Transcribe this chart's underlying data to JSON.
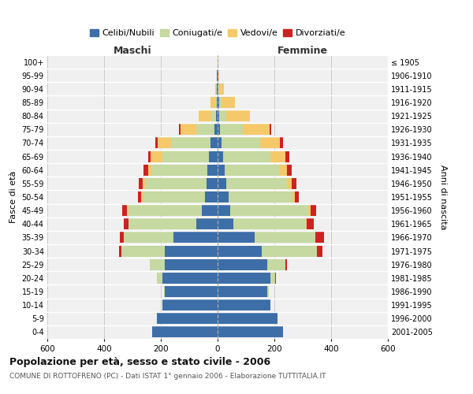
{
  "age_groups": [
    "0-4",
    "5-9",
    "10-14",
    "15-19",
    "20-24",
    "25-29",
    "30-34",
    "35-39",
    "40-44",
    "45-49",
    "50-54",
    "55-59",
    "60-64",
    "65-69",
    "70-74",
    "75-79",
    "80-84",
    "85-89",
    "90-94",
    "95-99",
    "100+"
  ],
  "birth_years": [
    "2001-2005",
    "1996-2000",
    "1991-1995",
    "1986-1990",
    "1981-1985",
    "1976-1980",
    "1971-1975",
    "1966-1970",
    "1961-1965",
    "1956-1960",
    "1951-1955",
    "1946-1950",
    "1941-1945",
    "1936-1940",
    "1931-1935",
    "1926-1930",
    "1921-1925",
    "1916-1920",
    "1911-1915",
    "1906-1910",
    "≤ 1905"
  ],
  "colors": {
    "celibi": "#3d6ea8",
    "coniugati": "#c5d9a0",
    "vedovi": "#f5c96a",
    "divorziati": "#cc2222"
  },
  "maschi": {
    "celibi": [
      230,
      215,
      195,
      185,
      195,
      185,
      185,
      155,
      75,
      55,
      45,
      40,
      35,
      30,
      25,
      10,
      5,
      4,
      3,
      2,
      1
    ],
    "coniugati": [
      0,
      0,
      0,
      5,
      20,
      55,
      155,
      175,
      240,
      260,
      220,
      215,
      195,
      165,
      140,
      65,
      18,
      5,
      2,
      1,
      0
    ],
    "vedovi": [
      0,
      0,
      0,
      0,
      0,
      0,
      0,
      0,
      0,
      5,
      5,
      8,
      15,
      40,
      45,
      55,
      45,
      15,
      4,
      1,
      0
    ],
    "divorziati": [
      0,
      0,
      0,
      0,
      0,
      0,
      8,
      15,
      15,
      15,
      10,
      15,
      15,
      10,
      10,
      5,
      0,
      0,
      0,
      0,
      0
    ]
  },
  "femmine": {
    "celibi": [
      230,
      210,
      185,
      175,
      185,
      175,
      155,
      130,
      55,
      45,
      40,
      30,
      25,
      20,
      15,
      8,
      5,
      5,
      3,
      2,
      1
    ],
    "coniugati": [
      0,
      0,
      0,
      5,
      18,
      65,
      195,
      215,
      255,
      275,
      225,
      215,
      195,
      165,
      135,
      80,
      25,
      10,
      3,
      1,
      0
    ],
    "vedovi": [
      0,
      0,
      0,
      0,
      0,
      0,
      0,
      0,
      5,
      8,
      8,
      15,
      25,
      55,
      70,
      95,
      85,
      45,
      15,
      3,
      1
    ],
    "divorziati": [
      0,
      0,
      0,
      0,
      2,
      5,
      20,
      30,
      25,
      20,
      12,
      18,
      15,
      12,
      10,
      5,
      0,
      0,
      0,
      0,
      0
    ]
  },
  "xlim": 600,
  "title": "Popolazione per età, sesso e stato civile - 2006",
  "subtitle": "COMUNE DI ROTTOFRENO (PC) - Dati ISTAT 1° gennaio 2006 - Elaborazione TUTTITALIA.IT",
  "ylabel_left": "Fasce di età",
  "ylabel_right": "Anni di nascita",
  "maschi_label": "Maschi",
  "femmine_label": "Femmine",
  "legend_labels": [
    "Celibi/Nubili",
    "Coniugati/e",
    "Vedovi/e",
    "Divorziati/e"
  ],
  "bg_color": "#f0f0f0",
  "grid_color": "#cccccc",
  "fig_width": 6.0,
  "fig_height": 5.0,
  "dpi": 100
}
